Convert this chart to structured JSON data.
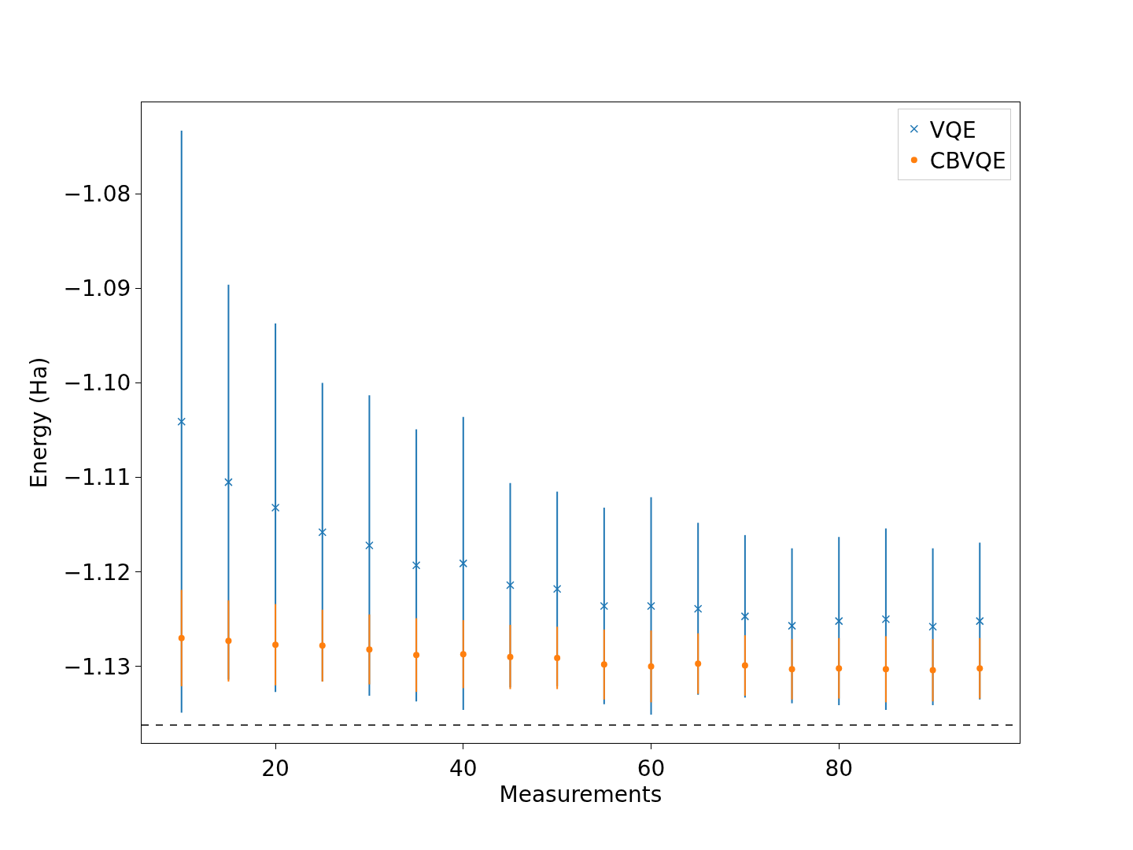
{
  "chart_data": {
    "type": "scatter",
    "xlabel": "Measurements",
    "ylabel": "Energy (Ha)",
    "x": [
      10,
      15,
      20,
      25,
      30,
      35,
      40,
      45,
      50,
      55,
      60,
      65,
      70,
      75,
      80,
      85,
      90,
      95
    ],
    "series": [
      {
        "name": "VQE",
        "color": "#1f77b4",
        "marker": "cross",
        "values": [
          -1.1041,
          -1.1105,
          -1.1132,
          -1.1158,
          -1.1172,
          -1.1193,
          -1.1191,
          -1.1214,
          -1.1218,
          -1.1236,
          -1.1236,
          -1.1239,
          -1.1247,
          -1.1257,
          -1.1252,
          -1.125,
          -1.1258,
          -1.1252
        ],
        "errors": [
          0.0308,
          0.0209,
          0.0195,
          0.0158,
          0.0159,
          0.0144,
          0.0155,
          0.0108,
          0.0103,
          0.0104,
          0.0115,
          0.0091,
          0.0086,
          0.0082,
          0.0089,
          0.0096,
          0.0083,
          0.0083
        ]
      },
      {
        "name": "CBVQE",
        "color": "#ff7f0e",
        "marker": "circle",
        "values": [
          -1.127,
          -1.1273,
          -1.1277,
          -1.1278,
          -1.1282,
          -1.1288,
          -1.1287,
          -1.129,
          -1.1291,
          -1.1298,
          -1.13,
          -1.1297,
          -1.1299,
          -1.1303,
          -1.1302,
          -1.1303,
          -1.1304,
          -1.1302
        ],
        "errors": [
          0.0051,
          0.0043,
          0.0043,
          0.0038,
          0.0037,
          0.0039,
          0.0036,
          0.0034,
          0.0033,
          0.0037,
          0.0038,
          0.0032,
          0.0032,
          0.0032,
          0.0032,
          0.0035,
          0.0033,
          0.0032
        ]
      }
    ],
    "ref_lines": [
      {
        "axis": "y",
        "value": -1.1362,
        "color": "#000000",
        "line_style": "dashed"
      }
    ],
    "xlim": [
      5.75,
      99.25
    ],
    "xticks": [
      20,
      40,
      60,
      80
    ],
    "ylim": [
      -1.1381,
      -1.0703
    ],
    "yticks": [
      {
        "value": -1.08,
        "label": "−1.08"
      },
      {
        "value": -1.09,
        "label": "−1.09"
      },
      {
        "value": -1.1,
        "label": "−1.10"
      },
      {
        "value": -1.11,
        "label": "−1.11"
      },
      {
        "value": -1.12,
        "label": "−1.12"
      },
      {
        "value": -1.13,
        "label": "−1.13"
      }
    ],
    "legend": "top right"
  }
}
